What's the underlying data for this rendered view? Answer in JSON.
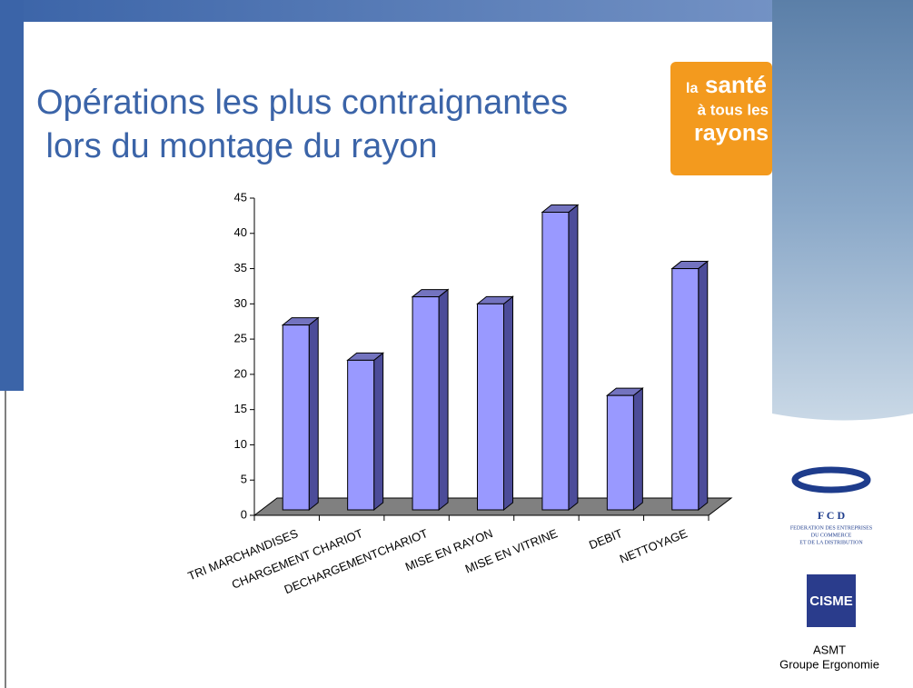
{
  "chart_data": {
    "type": "bar",
    "title": "Opérations les plus contraignantes lors du montage du rayon",
    "categories": [
      "TRI MARCHANDISES",
      "CHARGEMENT CHARIOT",
      "DECHARGEMENTCHARIOT",
      "MISE EN RAYON",
      "MISE EN VITRINE",
      "DEBIT",
      "NETTOYAGE"
    ],
    "values": [
      27,
      22,
      31,
      30,
      43,
      17,
      35
    ],
    "color": "#9999ff",
    "ylim": [
      0,
      45
    ],
    "yticks": [
      0,
      5,
      10,
      15,
      20,
      25,
      30,
      35,
      40,
      45
    ],
    "grid": false
  },
  "logos": {
    "sante": [
      "la",
      "santé",
      "à tous les",
      "rayons"
    ],
    "fcd": [
      "F C D",
      "FEDERATION DES ENTREPRISES",
      "DU COMMERCE",
      "ET DE LA DISTRIBUTION"
    ],
    "cisme": "CISME",
    "footer": [
      "ASMT",
      "Groupe Ergonomie"
    ]
  }
}
